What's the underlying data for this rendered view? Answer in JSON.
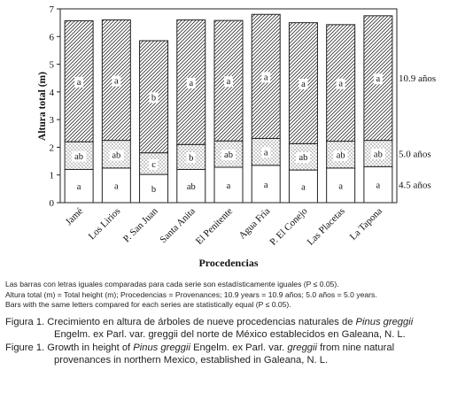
{
  "chart_data": {
    "type": "bar",
    "stacked": true,
    "ylabel": "Altura total (m)",
    "xlabel": "Procedencias",
    "ylim": [
      0,
      7
    ],
    "yticks": [
      0,
      1,
      2,
      3,
      4,
      5,
      6,
      7
    ],
    "grid": false,
    "categories": [
      "Jamé",
      "Los Lirios",
      "P. San Juan",
      "Santa Anita",
      "El Penitente",
      "Agua Fría",
      "P. El Conejo",
      "Las Placetas",
      "La Tapona"
    ],
    "series": [
      {
        "name": "4.5 años",
        "pattern": "plain",
        "values": [
          1.2,
          1.25,
          1.02,
          1.2,
          1.28,
          1.35,
          1.18,
          1.25,
          1.3
        ],
        "letters": [
          "a",
          "a",
          "b",
          "ab",
          "a",
          "a",
          "a",
          "a",
          "a"
        ]
      },
      {
        "name": "5.0 años",
        "pattern": "dots",
        "values": [
          1.0,
          1.0,
          0.78,
          0.9,
          0.95,
          0.97,
          0.95,
          0.97,
          0.95
        ],
        "letters": [
          "ab",
          "ab",
          "c",
          "b",
          "ab",
          "a",
          "ab",
          "ab",
          "ab"
        ]
      },
      {
        "name": "10.9 años",
        "pattern": "hatch",
        "values": [
          4.37,
          4.35,
          4.05,
          4.5,
          4.35,
          4.48,
          4.37,
          4.21,
          4.5
        ],
        "letters": [
          "a",
          "a",
          "b",
          "a",
          "a",
          "a",
          "a",
          "a",
          "a"
        ]
      }
    ]
  },
  "notes": [
    "Las barras con letras iguales comparadas para cada serie son estadísticamente iguales (P ≤ 0.05).",
    "Altura total (m) = Total height (m); Procedencias = Provenances; 10.9 years = 10.9 años; 5.0 años = 5.0 years.",
    "Bars with the same letters compared for each series are statistically equal (P ≤ 0.05)."
  ],
  "caption_es": {
    "label": "Figura 1.",
    "pre": " Crecimiento en altura de árboles de nueve procedencias naturales de ",
    "species": "Pinus greggii",
    "post": "Engelm. ex Parl. var. greggii del norte de México establecidos en Galeana, N. L."
  },
  "caption_en": {
    "label": "Figure 1.",
    "pre": " Growth in height of ",
    "species": "Pinus greggii",
    "mid": " Engelm. ex Parl. var. ",
    "variety": "greggii",
    "post": " from nine natural",
    "line2": "provenances in northern Mexico, established in Galeana, N. L."
  }
}
